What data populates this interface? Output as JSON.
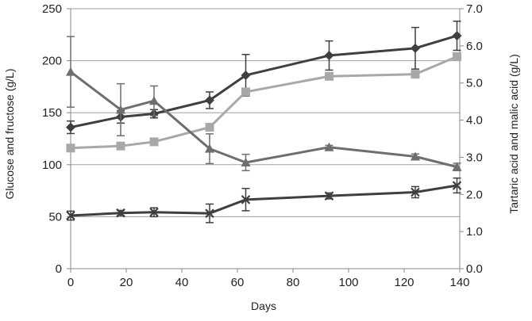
{
  "chart_data": {
    "type": "line",
    "title": "",
    "xlabel": "Days",
    "ylabel_left": "Glucose and fructose  (g/L)",
    "ylabel_right": "Tartaric acid and malic acid (g/L)",
    "xlim": [
      0,
      140
    ],
    "ylim_left": [
      0,
      250
    ],
    "ylim_right": [
      0.0,
      7.0
    ],
    "x_ticks": [
      "0",
      "20",
      "40",
      "60",
      "80",
      "100",
      "120",
      "140"
    ],
    "y_left_ticks": [
      "0",
      "50",
      "100",
      "150",
      "200",
      "250"
    ],
    "y_right_ticks": [
      "0.0",
      "1.0",
      "2.0",
      "3.0",
      "4.0",
      "5.0",
      "6.0",
      "7.0"
    ],
    "grid": "horizontal",
    "colors": {
      "dark": "#3f3f3f",
      "mid": "#6e6e6e",
      "light": "#a8a8a8",
      "grid": "#a0a0a0",
      "axis": "#888888"
    },
    "series": [
      {
        "axis": "left",
        "marker": "diamond",
        "color": "#3f3f3f",
        "x": [
          0,
          18,
          30,
          50,
          63,
          93,
          124,
          139
        ],
        "values": [
          136,
          146,
          149,
          162,
          186,
          205,
          212,
          224
        ],
        "err": [
          6,
          6,
          4,
          8,
          20,
          14,
          20,
          14
        ]
      },
      {
        "axis": "left",
        "marker": "square",
        "color": "#a8a8a8",
        "x": [
          0,
          18,
          30,
          50,
          63,
          93,
          124,
          139
        ],
        "values": [
          116,
          118,
          122,
          136,
          170,
          185,
          187,
          204
        ],
        "err": [
          0,
          0,
          0,
          0,
          0,
          0,
          0,
          0
        ]
      },
      {
        "axis": "right",
        "marker": "triangle",
        "color": "#6e6e6e",
        "x": [
          0,
          18,
          30,
          50,
          63,
          93,
          124,
          139
        ],
        "values": [
          5.3,
          4.28,
          4.52,
          3.23,
          2.86,
          3.27,
          3.02,
          2.74
        ],
        "err": [
          0.95,
          0.7,
          0.4,
          0.4,
          0.22,
          0.05,
          0.07,
          0.1
        ]
      },
      {
        "axis": "right",
        "marker": "x",
        "color": "#3f3f3f",
        "x": [
          0,
          18,
          30,
          50,
          63,
          93,
          124,
          139
        ],
        "values": [
          1.43,
          1.5,
          1.52,
          1.49,
          1.86,
          1.96,
          2.06,
          2.24
        ],
        "err": [
          0.12,
          0.07,
          0.12,
          0.25,
          0.3,
          0.08,
          0.15,
          0.2
        ]
      }
    ]
  }
}
